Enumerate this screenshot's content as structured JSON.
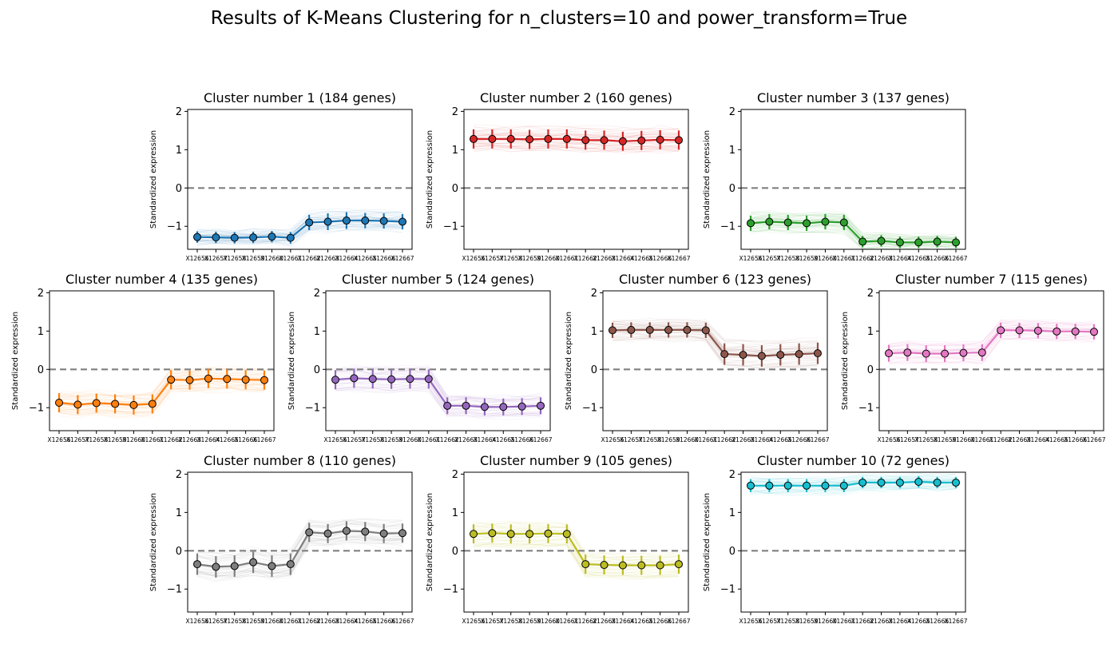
{
  "figure": {
    "title": "Results of K-Means Clustering for n_clusters=10 and power_transform=True"
  },
  "axes_common": {
    "ylabel": "Standardized expression",
    "yticks": [
      -1,
      0,
      1,
      2
    ],
    "ylim": [
      -1.6,
      2.05
    ],
    "x_ticklabels": [
      "X12656",
      "X12657",
      "X12658",
      "X12659",
      "X12660",
      "X12661",
      "X12662",
      "X12663",
      "X12664",
      "X12665",
      "X12666",
      "X12667"
    ],
    "reference_line": 0
  },
  "chart_data": [
    {
      "type": "line",
      "title": "Cluster number 1 (184 genes)",
      "color": "#1f77b4",
      "values": [
        -1.28,
        -1.29,
        -1.3,
        -1.29,
        -1.27,
        -1.3,
        -0.9,
        -0.88,
        -0.85,
        -0.85,
        -0.86,
        -0.88
      ],
      "error": [
        0.15,
        0.15,
        0.15,
        0.15,
        0.15,
        0.15,
        0.2,
        0.22,
        0.22,
        0.2,
        0.2,
        0.2
      ]
    },
    {
      "type": "line",
      "title": "Cluster number 2 (160 genes)",
      "color": "#d62728",
      "values": [
        1.28,
        1.28,
        1.28,
        1.27,
        1.28,
        1.28,
        1.25,
        1.25,
        1.22,
        1.24,
        1.26,
        1.25
      ],
      "error": [
        0.25,
        0.25,
        0.25,
        0.25,
        0.25,
        0.25,
        0.25,
        0.25,
        0.25,
        0.25,
        0.25,
        0.25
      ]
    },
    {
      "type": "line",
      "title": "Cluster number 3 (137 genes)",
      "color": "#2ca02c",
      "values": [
        -0.92,
        -0.88,
        -0.9,
        -0.92,
        -0.88,
        -0.9,
        -1.4,
        -1.38,
        -1.42,
        -1.42,
        -1.4,
        -1.42
      ],
      "error": [
        0.2,
        0.2,
        0.2,
        0.2,
        0.2,
        0.2,
        0.15,
        0.15,
        0.15,
        0.15,
        0.15,
        0.15
      ]
    },
    {
      "type": "line",
      "title": "Cluster number 4 (135 genes)",
      "color": "#ff7f0e",
      "values": [
        -0.87,
        -0.92,
        -0.88,
        -0.9,
        -0.93,
        -0.9,
        -0.27,
        -0.28,
        -0.24,
        -0.25,
        -0.27,
        -0.28
      ],
      "error": [
        0.25,
        0.25,
        0.25,
        0.25,
        0.25,
        0.25,
        0.25,
        0.25,
        0.25,
        0.25,
        0.25,
        0.25
      ]
    },
    {
      "type": "line",
      "title": "Cluster number 5 (124 genes)",
      "color": "#9467bd",
      "values": [
        -0.27,
        -0.23,
        -0.25,
        -0.26,
        -0.25,
        -0.25,
        -0.95,
        -0.95,
        -0.98,
        -0.98,
        -0.97,
        -0.95
      ],
      "error": [
        0.25,
        0.25,
        0.25,
        0.25,
        0.25,
        0.25,
        0.22,
        0.22,
        0.22,
        0.22,
        0.22,
        0.22
      ]
    },
    {
      "type": "line",
      "title": "Cluster number 6 (123 genes)",
      "color": "#8c564b",
      "values": [
        1.02,
        1.03,
        1.03,
        1.03,
        1.03,
        1.02,
        0.4,
        0.38,
        0.35,
        0.38,
        0.4,
        0.42
      ],
      "error": [
        0.2,
        0.2,
        0.2,
        0.2,
        0.2,
        0.2,
        0.28,
        0.28,
        0.28,
        0.28,
        0.28,
        0.28
      ]
    },
    {
      "type": "line",
      "title": "Cluster number 7 (115 genes)",
      "color": "#e377c2",
      "values": [
        0.42,
        0.44,
        0.41,
        0.41,
        0.43,
        0.44,
        1.02,
        1.02,
        1.01,
        0.99,
        0.99,
        0.98
      ],
      "error": [
        0.22,
        0.22,
        0.22,
        0.22,
        0.22,
        0.22,
        0.2,
        0.2,
        0.2,
        0.2,
        0.2,
        0.2
      ]
    },
    {
      "type": "line",
      "title": "Cluster number 8 (110 genes)",
      "color": "#7f7f7f",
      "values": [
        -0.35,
        -0.42,
        -0.4,
        -0.3,
        -0.4,
        -0.35,
        0.48,
        0.45,
        0.52,
        0.5,
        0.45,
        0.46
      ],
      "error": [
        0.28,
        0.28,
        0.28,
        0.28,
        0.28,
        0.28,
        0.25,
        0.25,
        0.25,
        0.25,
        0.25,
        0.25
      ]
    },
    {
      "type": "line",
      "title": "Cluster number 9 (105 genes)",
      "color": "#bcbd22",
      "values": [
        0.44,
        0.46,
        0.44,
        0.44,
        0.45,
        0.44,
        -0.35,
        -0.37,
        -0.38,
        -0.38,
        -0.38,
        -0.35
      ],
      "error": [
        0.25,
        0.25,
        0.25,
        0.25,
        0.25,
        0.25,
        0.25,
        0.25,
        0.25,
        0.25,
        0.25,
        0.25
      ]
    },
    {
      "type": "line",
      "title": "Cluster number 10 (72 genes)",
      "color": "#17becf",
      "values": [
        1.7,
        1.7,
        1.7,
        1.7,
        1.7,
        1.7,
        1.78,
        1.78,
        1.78,
        1.8,
        1.78,
        1.78
      ],
      "error": [
        0.17,
        0.17,
        0.17,
        0.17,
        0.17,
        0.17,
        0.15,
        0.15,
        0.15,
        0.15,
        0.15,
        0.15
      ]
    }
  ]
}
